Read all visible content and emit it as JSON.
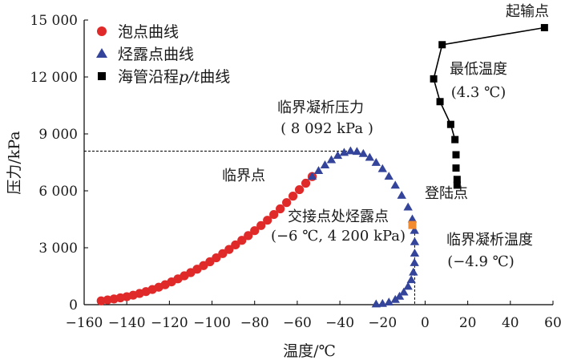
{
  "chart_data": {
    "type": "scatter",
    "xlabel": "温度/℃",
    "ylabel": "压力/kPa",
    "xlim": [
      -160,
      60
    ],
    "ylim": [
      0,
      15000
    ],
    "x_ticks": [
      -160,
      -140,
      -120,
      -100,
      -80,
      -60,
      -40,
      -20,
      0,
      20,
      40,
      60
    ],
    "x_tick_labels": [
      "−160",
      "−140",
      "−120",
      "−100",
      "−80",
      "−60",
      "−40",
      "−20",
      "0",
      "20",
      "40",
      "60"
    ],
    "y_ticks": [
      0,
      3000,
      6000,
      9000,
      12000,
      15000
    ],
    "y_tick_labels": [
      "0",
      "3 000",
      "6 000",
      "9 000",
      "12 000",
      "15 000"
    ],
    "grid": false,
    "legend_position": "top-left",
    "series": [
      {
        "name": "泡点曲线",
        "marker": "circle",
        "color": "#e02a2a",
        "points": [
          [
            -152,
            200
          ],
          [
            -149,
            250
          ],
          [
            -146,
            300
          ],
          [
            -143,
            360
          ],
          [
            -140,
            420
          ],
          [
            -137,
            500
          ],
          [
            -134,
            590
          ],
          [
            -131,
            690
          ],
          [
            -128,
            800
          ],
          [
            -125,
            920
          ],
          [
            -122,
            1050
          ],
          [
            -119,
            1200
          ],
          [
            -116,
            1360
          ],
          [
            -113,
            1520
          ],
          [
            -110,
            1690
          ],
          [
            -107,
            1870
          ],
          [
            -104,
            2060
          ],
          [
            -101,
            2260
          ],
          [
            -98,
            2470
          ],
          [
            -95,
            2690
          ],
          [
            -92,
            2910
          ],
          [
            -89,
            3150
          ],
          [
            -86,
            3390
          ],
          [
            -83,
            3640
          ],
          [
            -80,
            3900
          ],
          [
            -77,
            4170
          ],
          [
            -74,
            4450
          ],
          [
            -71,
            4750
          ],
          [
            -68,
            5050
          ],
          [
            -65,
            5380
          ],
          [
            -62,
            5720
          ],
          [
            -59,
            6060
          ],
          [
            -56,
            6400
          ],
          [
            -53,
            6750
          ]
        ]
      },
      {
        "name": "烃露点曲线",
        "marker": "triangle",
        "color": "#34449a",
        "points": [
          [
            -53,
            6750
          ],
          [
            -50,
            7050
          ],
          [
            -47,
            7350
          ],
          [
            -44,
            7620
          ],
          [
            -41,
            7850
          ],
          [
            -38,
            8010
          ],
          [
            -35,
            8092
          ],
          [
            -32,
            8060
          ],
          [
            -29,
            7950
          ],
          [
            -26,
            7750
          ],
          [
            -23,
            7480
          ],
          [
            -20,
            7150
          ],
          [
            -17,
            6750
          ],
          [
            -14,
            6280
          ],
          [
            -11,
            5750
          ],
          [
            -8,
            5130
          ],
          [
            -6,
            4500
          ],
          [
            -5,
            3900
          ],
          [
            -4.9,
            3300
          ],
          [
            -4.9,
            2700
          ],
          [
            -5,
            2200
          ],
          [
            -5.5,
            1700
          ],
          [
            -6.5,
            1300
          ],
          [
            -8,
            950
          ],
          [
            -10,
            650
          ],
          [
            -12,
            430
          ],
          [
            -14,
            260
          ],
          [
            -17,
            120
          ],
          [
            -20,
            50
          ],
          [
            -23,
            20
          ]
        ]
      },
      {
        "name": "海管沿程p/t曲线",
        "marker": "square",
        "color": "#000000",
        "points": [
          [
            56,
            14600
          ],
          [
            8,
            13700
          ],
          [
            4,
            11900
          ],
          [
            7,
            10700
          ],
          [
            12,
            9500
          ],
          [
            14,
            8700
          ],
          [
            14.5,
            7900
          ],
          [
            14.5,
            7200
          ],
          [
            15,
            6600
          ],
          [
            15,
            6300
          ]
        ]
      },
      {
        "name": "交接点处烃露点",
        "marker": "square",
        "color": "#f28a30",
        "points": [
          [
            -6,
            4200
          ]
        ]
      }
    ],
    "critical_reference_lines": {
      "cricondenbar": 8092,
      "cricondentherm": -4.9
    },
    "annotations": {
      "start_point": "起输点",
      "min_temp_line1": "最低温度",
      "min_temp_line2": "(4.3 ℃)",
      "landing_point": "登陆点",
      "critical_point": "临界点",
      "cricondenbar_line1": "临界凝析压力",
      "cricondenbar_line2": "( 8 092 kPa )",
      "junction_line1": "交接点处烃露点",
      "junction_line2": "(−6 ℃, 4 200 kPa)",
      "cricondentherm_line1": "临界凝析温度",
      "cricondentherm_line2": "(−4.9 ℃)"
    },
    "legend": [
      {
        "label": "泡点曲线"
      },
      {
        "label": "烃露点曲线"
      },
      {
        "label_main": "海管沿程",
        "label_italic": "p/t",
        "label_tail": "曲线"
      }
    ]
  }
}
